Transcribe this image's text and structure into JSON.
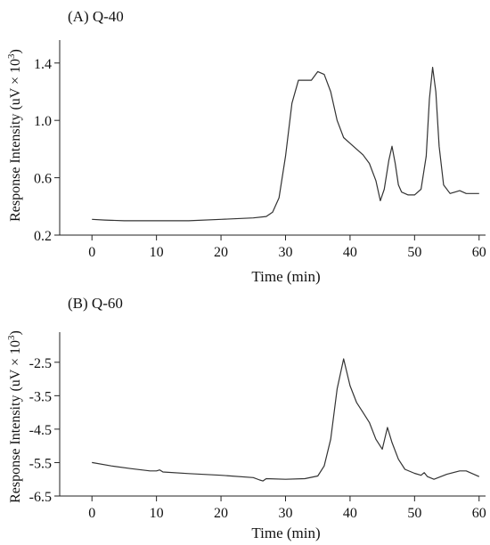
{
  "chart_data": [
    {
      "type": "line",
      "panel_title": "(A) Q-40",
      "xlabel": "Time (min)",
      "ylabel_main": "Response Intensity (uV × 10",
      "ylabel_sup": "3",
      "ylabel_close": ")",
      "xlim": [
        -5,
        61
      ],
      "ylim": [
        0.2,
        1.56
      ],
      "xticks": [
        0,
        10,
        20,
        30,
        40,
        50,
        60
      ],
      "xtick_labels": [
        "0",
        "10",
        "20",
        "30",
        "40",
        "50",
        "60"
      ],
      "yticks": [
        0.2,
        0.6,
        1.0,
        1.4
      ],
      "ytick_labels": [
        "0.2",
        "0.6",
        "1.0",
        "1.4"
      ],
      "grid": false,
      "series": [
        {
          "x": [
            0,
            2,
            5,
            10,
            15,
            20,
            25,
            27,
            28,
            29,
            30,
            31,
            32,
            33,
            34,
            35,
            36,
            37,
            38,
            39,
            40,
            41,
            42,
            43,
            44,
            44.7,
            45.3,
            46,
            46.5,
            47,
            47.5,
            48,
            49,
            50,
            51,
            51.8,
            52.3,
            52.8,
            53.3,
            53.8,
            54.5,
            55.5,
            57,
            58,
            60
          ],
          "y": [
            0.31,
            0.305,
            0.3,
            0.3,
            0.3,
            0.31,
            0.32,
            0.33,
            0.36,
            0.46,
            0.75,
            1.12,
            1.28,
            1.28,
            1.28,
            1.34,
            1.32,
            1.2,
            1.0,
            0.88,
            0.84,
            0.8,
            0.76,
            0.7,
            0.58,
            0.44,
            0.52,
            0.72,
            0.82,
            0.7,
            0.55,
            0.5,
            0.48,
            0.48,
            0.52,
            0.75,
            1.15,
            1.37,
            1.2,
            0.82,
            0.55,
            0.49,
            0.51,
            0.49,
            0.49
          ]
        }
      ]
    },
    {
      "type": "line",
      "panel_title": "(B) Q-60",
      "xlabel": "Time (min)",
      "ylabel_main": "Response Intensity (uV × 10",
      "ylabel_sup": "3",
      "ylabel_close": ")",
      "xlim": [
        -5,
        61
      ],
      "ylim": [
        -6.5,
        -1.6
      ],
      "xticks": [
        0,
        10,
        20,
        30,
        40,
        50,
        60
      ],
      "xtick_labels": [
        "0",
        "10",
        "20",
        "30",
        "40",
        "50",
        "60"
      ],
      "yticks": [
        -6.5,
        -5.5,
        -4.5,
        -3.5,
        -2.5
      ],
      "ytick_labels": [
        "-6.5",
        "-5.5",
        "-4.5",
        "-3.5",
        "-2.5"
      ],
      "grid": false,
      "series": [
        {
          "x": [
            0,
            3,
            6,
            9,
            10,
            10.5,
            11,
            15,
            20,
            25,
            26,
            26.5,
            27,
            30,
            33,
            35,
            36,
            37,
            38,
            39,
            40,
            41,
            42,
            43,
            44,
            45,
            45.8,
            46.5,
            47.5,
            48.5,
            50,
            51,
            51.5,
            52,
            53,
            55,
            57,
            58,
            60
          ],
          "y": [
            -5.5,
            -5.6,
            -5.68,
            -5.75,
            -5.75,
            -5.72,
            -5.78,
            -5.83,
            -5.88,
            -5.95,
            -6.02,
            -6.05,
            -5.98,
            -6.0,
            -5.98,
            -5.9,
            -5.6,
            -4.8,
            -3.3,
            -2.4,
            -3.2,
            -3.7,
            -4.0,
            -4.3,
            -4.8,
            -5.1,
            -4.45,
            -4.9,
            -5.4,
            -5.7,
            -5.82,
            -5.88,
            -5.8,
            -5.92,
            -6.0,
            -5.85,
            -5.75,
            -5.75,
            -5.92
          ]
        }
      ]
    }
  ]
}
